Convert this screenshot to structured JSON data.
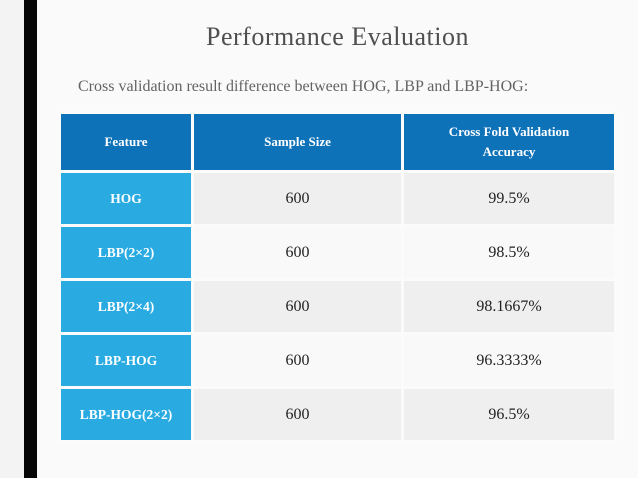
{
  "slide": {
    "title": "Performance Evaluation",
    "subtitle": "Cross validation result difference between HOG, LBP and LBP-HOG:"
  },
  "table": {
    "headers": [
      "Feature",
      "Sample Size",
      "Cross Fold Validation Accuracy"
    ],
    "rows": [
      {
        "feature": "HOG",
        "sample_size": "600",
        "accuracy": "99.5%"
      },
      {
        "feature": "LBP(2×2)",
        "sample_size": "600",
        "accuracy": "98.5%"
      },
      {
        "feature": "LBP(2×4)",
        "sample_size": "600",
        "accuracy": "98.1667%"
      },
      {
        "feature": "LBP-HOG",
        "sample_size": "600",
        "accuracy": "96.3333%"
      },
      {
        "feature": "LBP-HOG(2×2)",
        "sample_size": "600",
        "accuracy": "96.5%"
      }
    ]
  },
  "colors": {
    "header_bg": "#0e72b8",
    "feature_cell_bg": "#29abe2",
    "row_odd_bg": "#efefef",
    "row_even_bg": "#f9f9f9",
    "accent_bar": "#060606",
    "title_text": "#4f4f4f",
    "subtitle_text": "#636363",
    "slide_bg": "#fafafa"
  }
}
